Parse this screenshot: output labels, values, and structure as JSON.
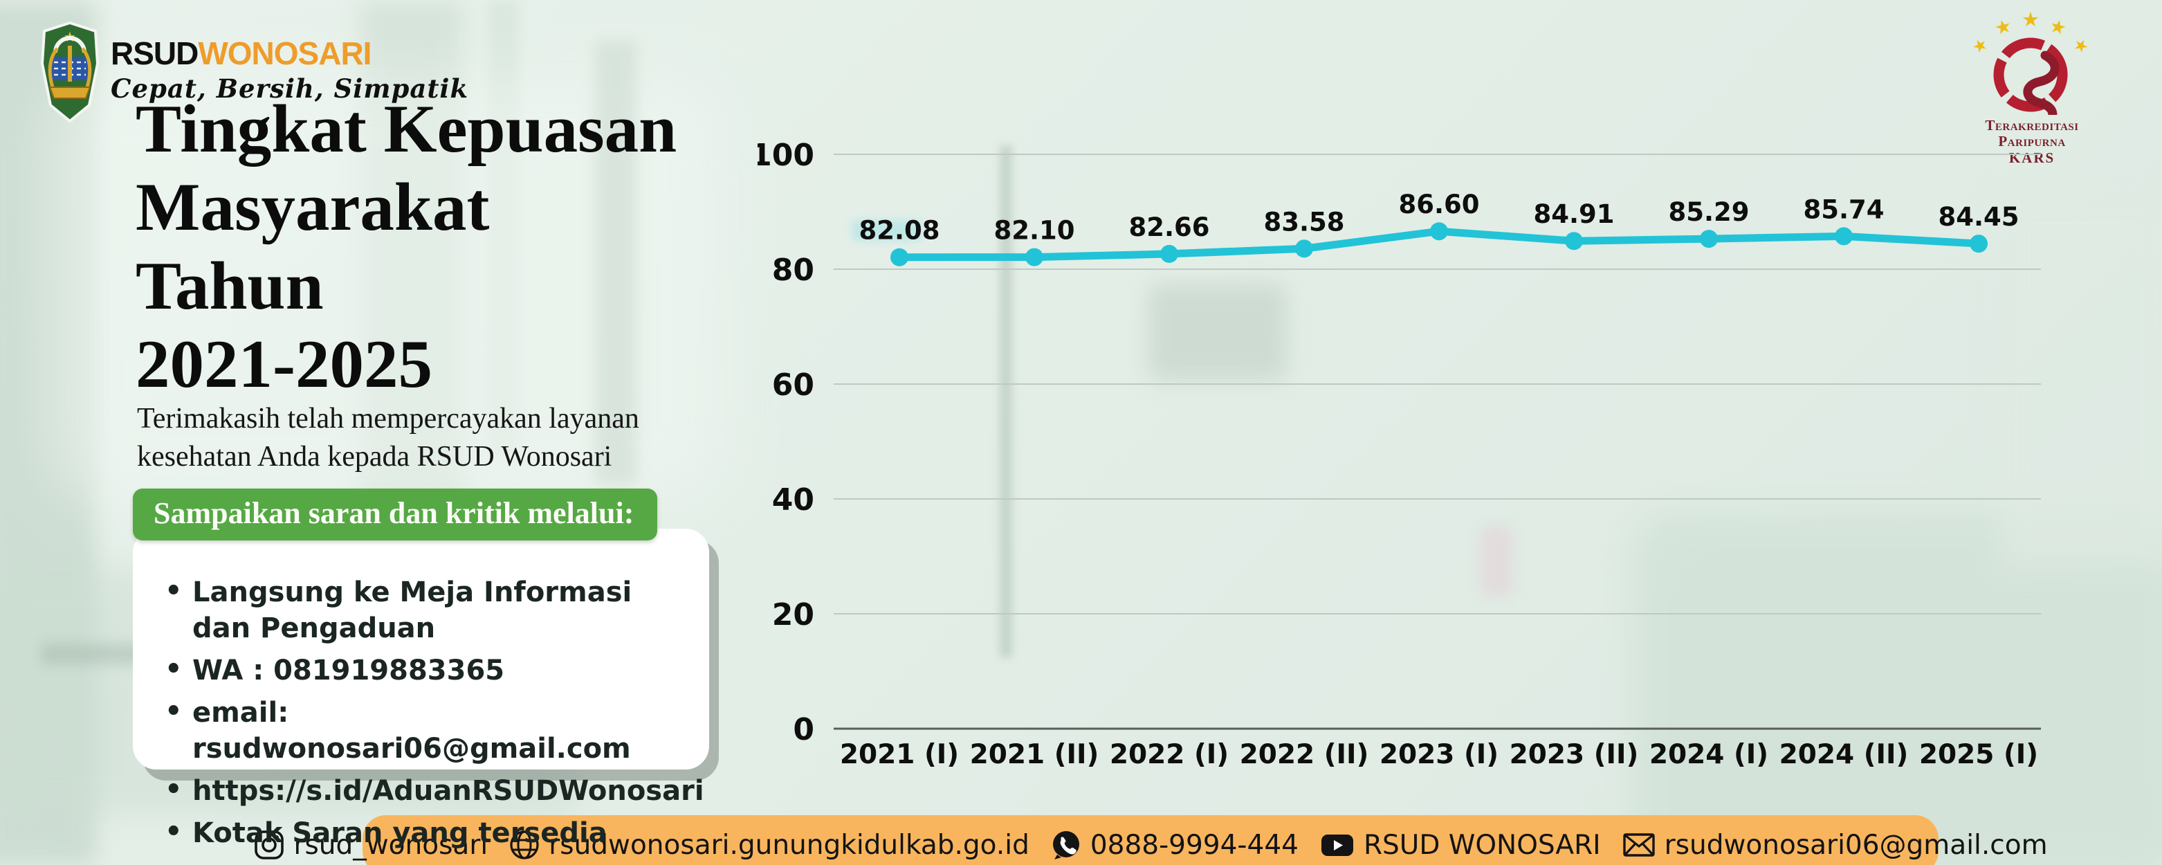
{
  "brand": {
    "name_part1": "RSUD",
    "name_part2": "WONOSARI",
    "tagline": "Cepat, Bersih, Simpatik"
  },
  "title": {
    "lines": [
      "Tingkat Kepuasan",
      "Masyarakat",
      "Tahun",
      "2021-2025"
    ]
  },
  "subtitle": "Terimakasih telah mempercayakan layanan kesehatan Anda kepada RSUD Wonosari",
  "feedback": {
    "heading": "Sampaikan saran dan kritik melalui:",
    "items": [
      "Langsung ke Meja Informasi dan Pengaduan",
      "WA : 081919883365",
      "email: rsudwonosari06@gmail.com",
      "https://s.id/AduanRSUDWonosari",
      "Kotak Saran yang tersedia"
    ]
  },
  "accreditation": {
    "line1": "Terakreditasi Paripurna",
    "line2": "KARS"
  },
  "chart_data": {
    "type": "line",
    "title": "Tingkat Kepuasan Masyarakat Tahun 2021-2025",
    "categories": [
      "2021 (I)",
      "2021 (II)",
      "2022 (I)",
      "2022 (II)",
      "2023 (I)",
      "2023 (II)",
      "2024 (I)",
      "2024 (II)",
      "2025 (I)"
    ],
    "values": [
      82.08,
      82.1,
      82.66,
      83.58,
      86.6,
      84.91,
      85.29,
      85.74,
      84.45
    ],
    "point_labels": [
      "82.08",
      "82.10",
      "82.66",
      "83.58",
      "86.60",
      "84.91",
      "85.29",
      "85.74",
      "84.45"
    ],
    "xlabel": "",
    "ylabel": "",
    "ylim": [
      0,
      100
    ],
    "yticks": [
      0,
      20,
      40,
      60,
      80,
      100
    ],
    "grid": true,
    "legend": false,
    "line_color": "#22c3d6",
    "marker": "circle"
  },
  "footer": {
    "items": [
      {
        "icon": "instagram-icon",
        "label": "rsud_wonosari"
      },
      {
        "icon": "globe-icon",
        "label": "rsudwonosari.gunungkidulkab.go.id"
      },
      {
        "icon": "whatsapp-icon",
        "label": "0888-9994-444"
      },
      {
        "icon": "youtube-icon",
        "label": "RSUD WONOSARI"
      },
      {
        "icon": "email-icon",
        "label": "rsudwonosari06@gmail.com"
      }
    ]
  },
  "colors": {
    "chart_line": "#22c3d6",
    "badge_green": "#56a845",
    "footer_orange": "#f8b55e",
    "brand_orange": "#ee9c2b",
    "kars_red": "#b51f30",
    "star_gold": "#eebc12",
    "background_mint": "#e3eee7"
  }
}
